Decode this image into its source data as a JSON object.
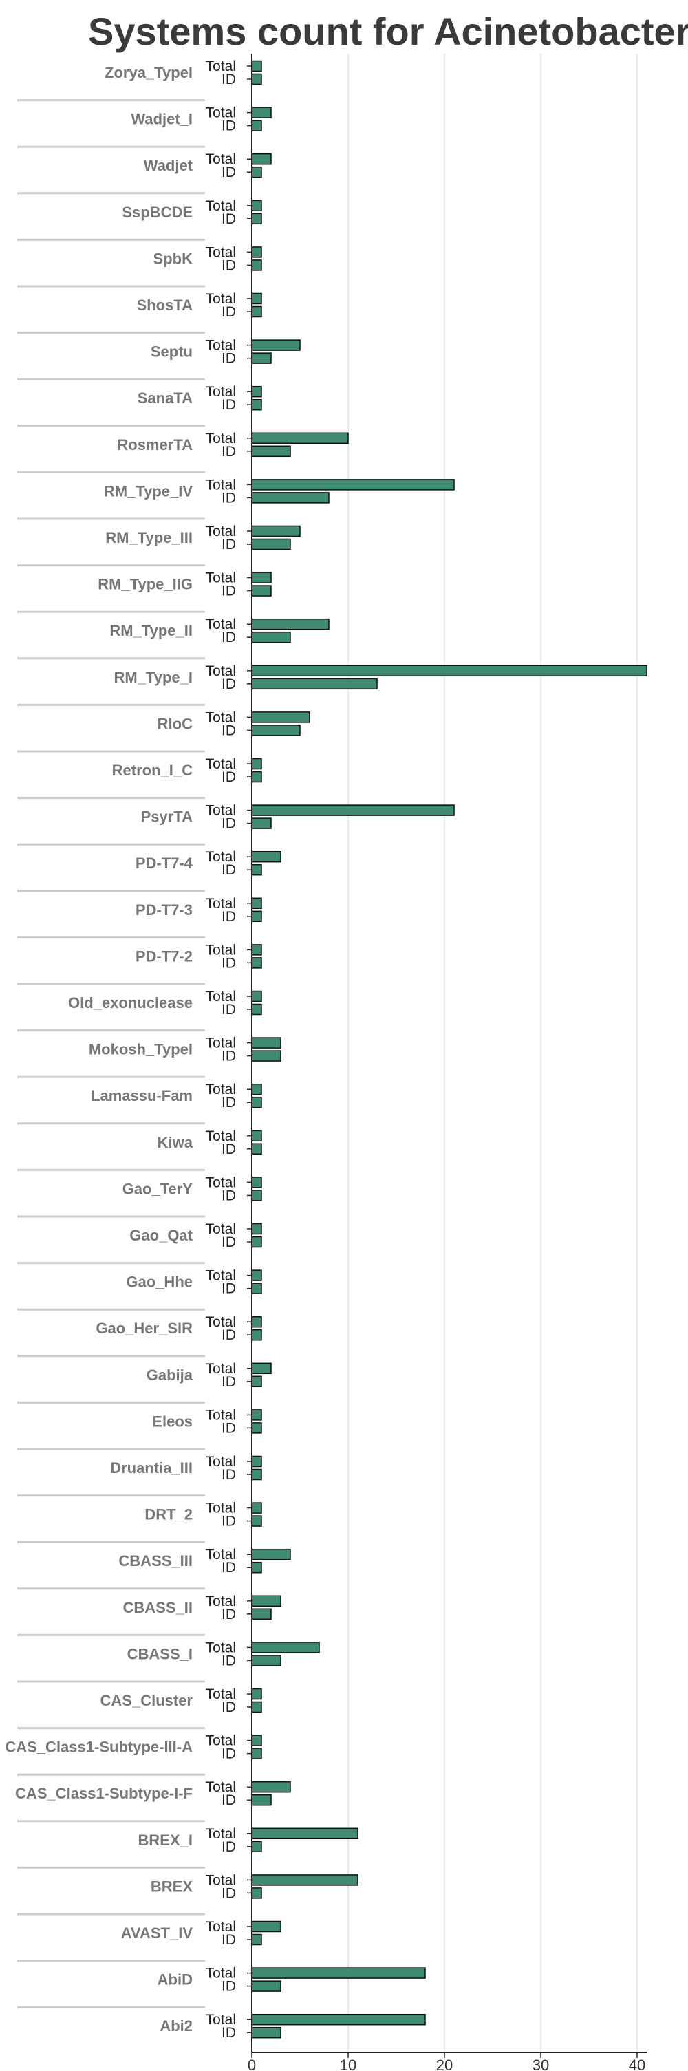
{
  "chart_data": {
    "type": "bar",
    "orientation": "horizontal",
    "title": "Systems count for Acinetobacter_i",
    "categories": [
      "Zorya_TypeI",
      "Wadjet_I",
      "Wadjet",
      "SspBCDE",
      "SpbK",
      "ShosTA",
      "Septu",
      "SanaTA",
      "RosmerTA",
      "RM_Type_IV",
      "RM_Type_III",
      "RM_Type_IIG",
      "RM_Type_II",
      "RM_Type_I",
      "RloC",
      "Retron_I_C",
      "PsyrTA",
      "PD-T7-4",
      "PD-T7-3",
      "PD-T7-2",
      "Old_exonuclease",
      "Mokosh_TypeI",
      "Lamassu-Fam",
      "Kiwa",
      "Gao_TerY",
      "Gao_Qat",
      "Gao_Hhe",
      "Gao_Her_SIR",
      "Gabija",
      "Eleos",
      "Druantia_III",
      "DRT_2",
      "CBASS_III",
      "CBASS_II",
      "CBASS_I",
      "CAS_Cluster",
      "CAS_Class1-Subtype-III-A",
      "CAS_Class1-Subtype-I-F",
      "BREX_I",
      "BREX",
      "AVAST_IV",
      "AbiD",
      "Abi2"
    ],
    "series": [
      {
        "name": "Total",
        "values": [
          1,
          2,
          2,
          1,
          1,
          1,
          5,
          1,
          10,
          21,
          5,
          2,
          8,
          41,
          6,
          1,
          21,
          3,
          1,
          1,
          1,
          3,
          1,
          1,
          1,
          1,
          1,
          1,
          2,
          1,
          1,
          1,
          4,
          3,
          7,
          1,
          1,
          4,
          11,
          11,
          3,
          18,
          18
        ]
      },
      {
        "name": "ID",
        "values": [
          1,
          1,
          1,
          1,
          1,
          1,
          2,
          1,
          4,
          8,
          4,
          2,
          4,
          13,
          5,
          1,
          2,
          1,
          1,
          1,
          1,
          3,
          1,
          1,
          1,
          1,
          1,
          1,
          1,
          1,
          1,
          1,
          1,
          2,
          3,
          1,
          1,
          2,
          1,
          1,
          1,
          3,
          3
        ]
      }
    ],
    "xlim": [
      0,
      41
    ],
    "xticks": [
      0,
      10,
      20,
      30,
      40
    ],
    "bar_color": "#3f8a70",
    "bar_edge_color": "#111111",
    "grid": true
  }
}
